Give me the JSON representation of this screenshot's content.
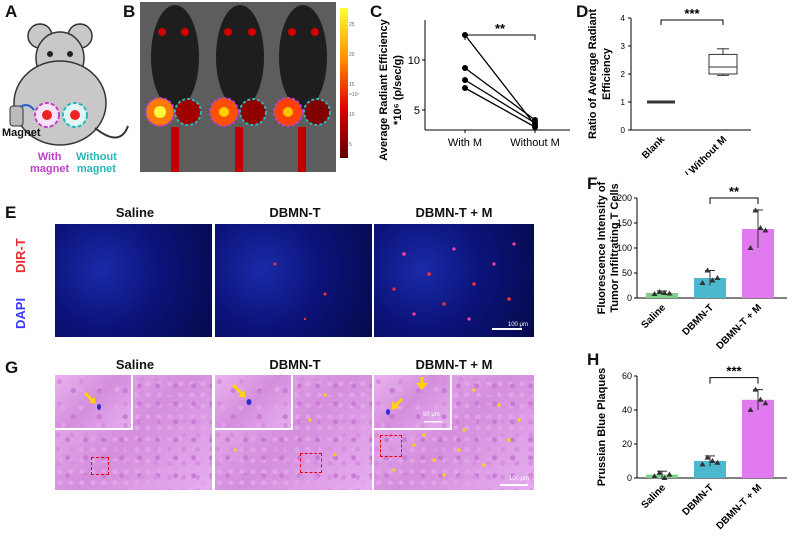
{
  "panels": {
    "A": "A",
    "B": "B",
    "C": "C",
    "D": "D",
    "E": "E",
    "F": "F",
    "G": "G",
    "H": "H"
  },
  "panelA": {
    "magnet_label": "Magnet",
    "with_magnet": "With\nmagnet",
    "without_magnet": "Without\nmagnet",
    "colors": {
      "with": "#c040c8",
      "without": "#2ab7b7"
    }
  },
  "panelB": {
    "colorbar_ticks": [
      "25",
      "20",
      "15",
      "10",
      "5"
    ],
    "colorbar_unit": "×10⁷"
  },
  "panelC": {
    "ylabel": "Average Radiant Efficiency",
    "ylabel2": "*10⁶ (p/sec/g)",
    "yticks": [
      "5",
      "10"
    ],
    "categories": [
      "With M",
      "Without M"
    ],
    "significance": "**"
  },
  "panelD": {
    "ylabel": "Ratio of Average Radiant",
    "ylabel2": "Efficiency",
    "yticks": [
      "0",
      "1",
      "2",
      "3",
      "4"
    ],
    "categories": [
      "Blank",
      "With M / Without M"
    ],
    "significance": "***"
  },
  "panelE": {
    "columns": [
      "Saline",
      "DBMN-T",
      "DBMN-T + M"
    ],
    "row_labels": [
      "DIR-T",
      "DAPI"
    ],
    "scalebar": "100 μm",
    "colors": {
      "dirt": "#e53030",
      "dapi": "#3a3aff"
    }
  },
  "panelF": {
    "ylabel": "Fluorescence Intensity of",
    "ylabel2": "Tumor Infiltrating T Cells",
    "yticks": [
      "0",
      "50",
      "100",
      "150",
      "200"
    ],
    "categories": [
      "Saline",
      "DBMN-T",
      "DBMN-T + M"
    ],
    "significance": "**"
  },
  "panelG": {
    "columns": [
      "Saline",
      "DBMN-T",
      "DBMN-T + M"
    ],
    "inset_scale": "50 μm",
    "scalebar": "100 μm"
  },
  "panelH": {
    "ylabel": "Prussian Blue Plaques",
    "yticks": [
      "0",
      "20",
      "40",
      "60"
    ],
    "categories": [
      "Saline",
      "DBMN-T",
      "DBMN-T + M"
    ],
    "significance": "***"
  },
  "chart_data": [
    {
      "type": "line",
      "panel": "C",
      "categories": [
        "With M",
        "Without M"
      ],
      "series": [
        {
          "values": [
            12.5,
            3.5
          ]
        },
        {
          "values": [
            9.2,
            4.0
          ]
        },
        {
          "values": [
            8.0,
            3.7
          ]
        },
        {
          "values": [
            7.2,
            3.3
          ]
        }
      ],
      "xlabel": "",
      "ylabel": "Average Radiant Efficiency *10⁶ (p/sec/g)",
      "ylim": [
        3,
        14
      ],
      "significance": "**"
    },
    {
      "type": "box",
      "panel": "D",
      "categories": [
        "Blank",
        "With M / Without M"
      ],
      "boxes": [
        {
          "min": 1.0,
          "q1": 1.0,
          "median": 1.0,
          "q3": 1.0,
          "max": 1.0
        },
        {
          "min": 1.95,
          "q1": 2.0,
          "median": 2.25,
          "q3": 2.7,
          "max": 2.9
        }
      ],
      "ylabel": "Ratio of Average Radiant Efficiency",
      "ylim": [
        0,
        4
      ],
      "significance": "***"
    },
    {
      "type": "bar",
      "panel": "F",
      "categories": [
        "Saline",
        "DBMN-T",
        "DBMN-T + M"
      ],
      "values": [
        10,
        40,
        138
      ],
      "errors": [
        4,
        15,
        38
      ],
      "points": [
        [
          8,
          12,
          10,
          9
        ],
        [
          30,
          55,
          35,
          40
        ],
        [
          100,
          175,
          140,
          135
        ]
      ],
      "colors": [
        "#7ecf8a",
        "#4bb8cf",
        "#e07aee"
      ],
      "ylabel": "Fluorescence Intensity of Tumor Infiltrating T Cells",
      "ylim": [
        0,
        200
      ],
      "significance": "**"
    },
    {
      "type": "bar",
      "panel": "H",
      "categories": [
        "Saline",
        "DBMN-T",
        "DBMN-T + M"
      ],
      "values": [
        2,
        10,
        46
      ],
      "errors": [
        2,
        3,
        6
      ],
      "points": [
        [
          1,
          3,
          0,
          2
        ],
        [
          8,
          12,
          10,
          9
        ],
        [
          40,
          52,
          46,
          44
        ]
      ],
      "colors": [
        "#7ecf8a",
        "#4bb8cf",
        "#e07aee"
      ],
      "ylabel": "Prussian Blue Plaques",
      "ylim": [
        0,
        60
      ],
      "significance": "***"
    }
  ]
}
